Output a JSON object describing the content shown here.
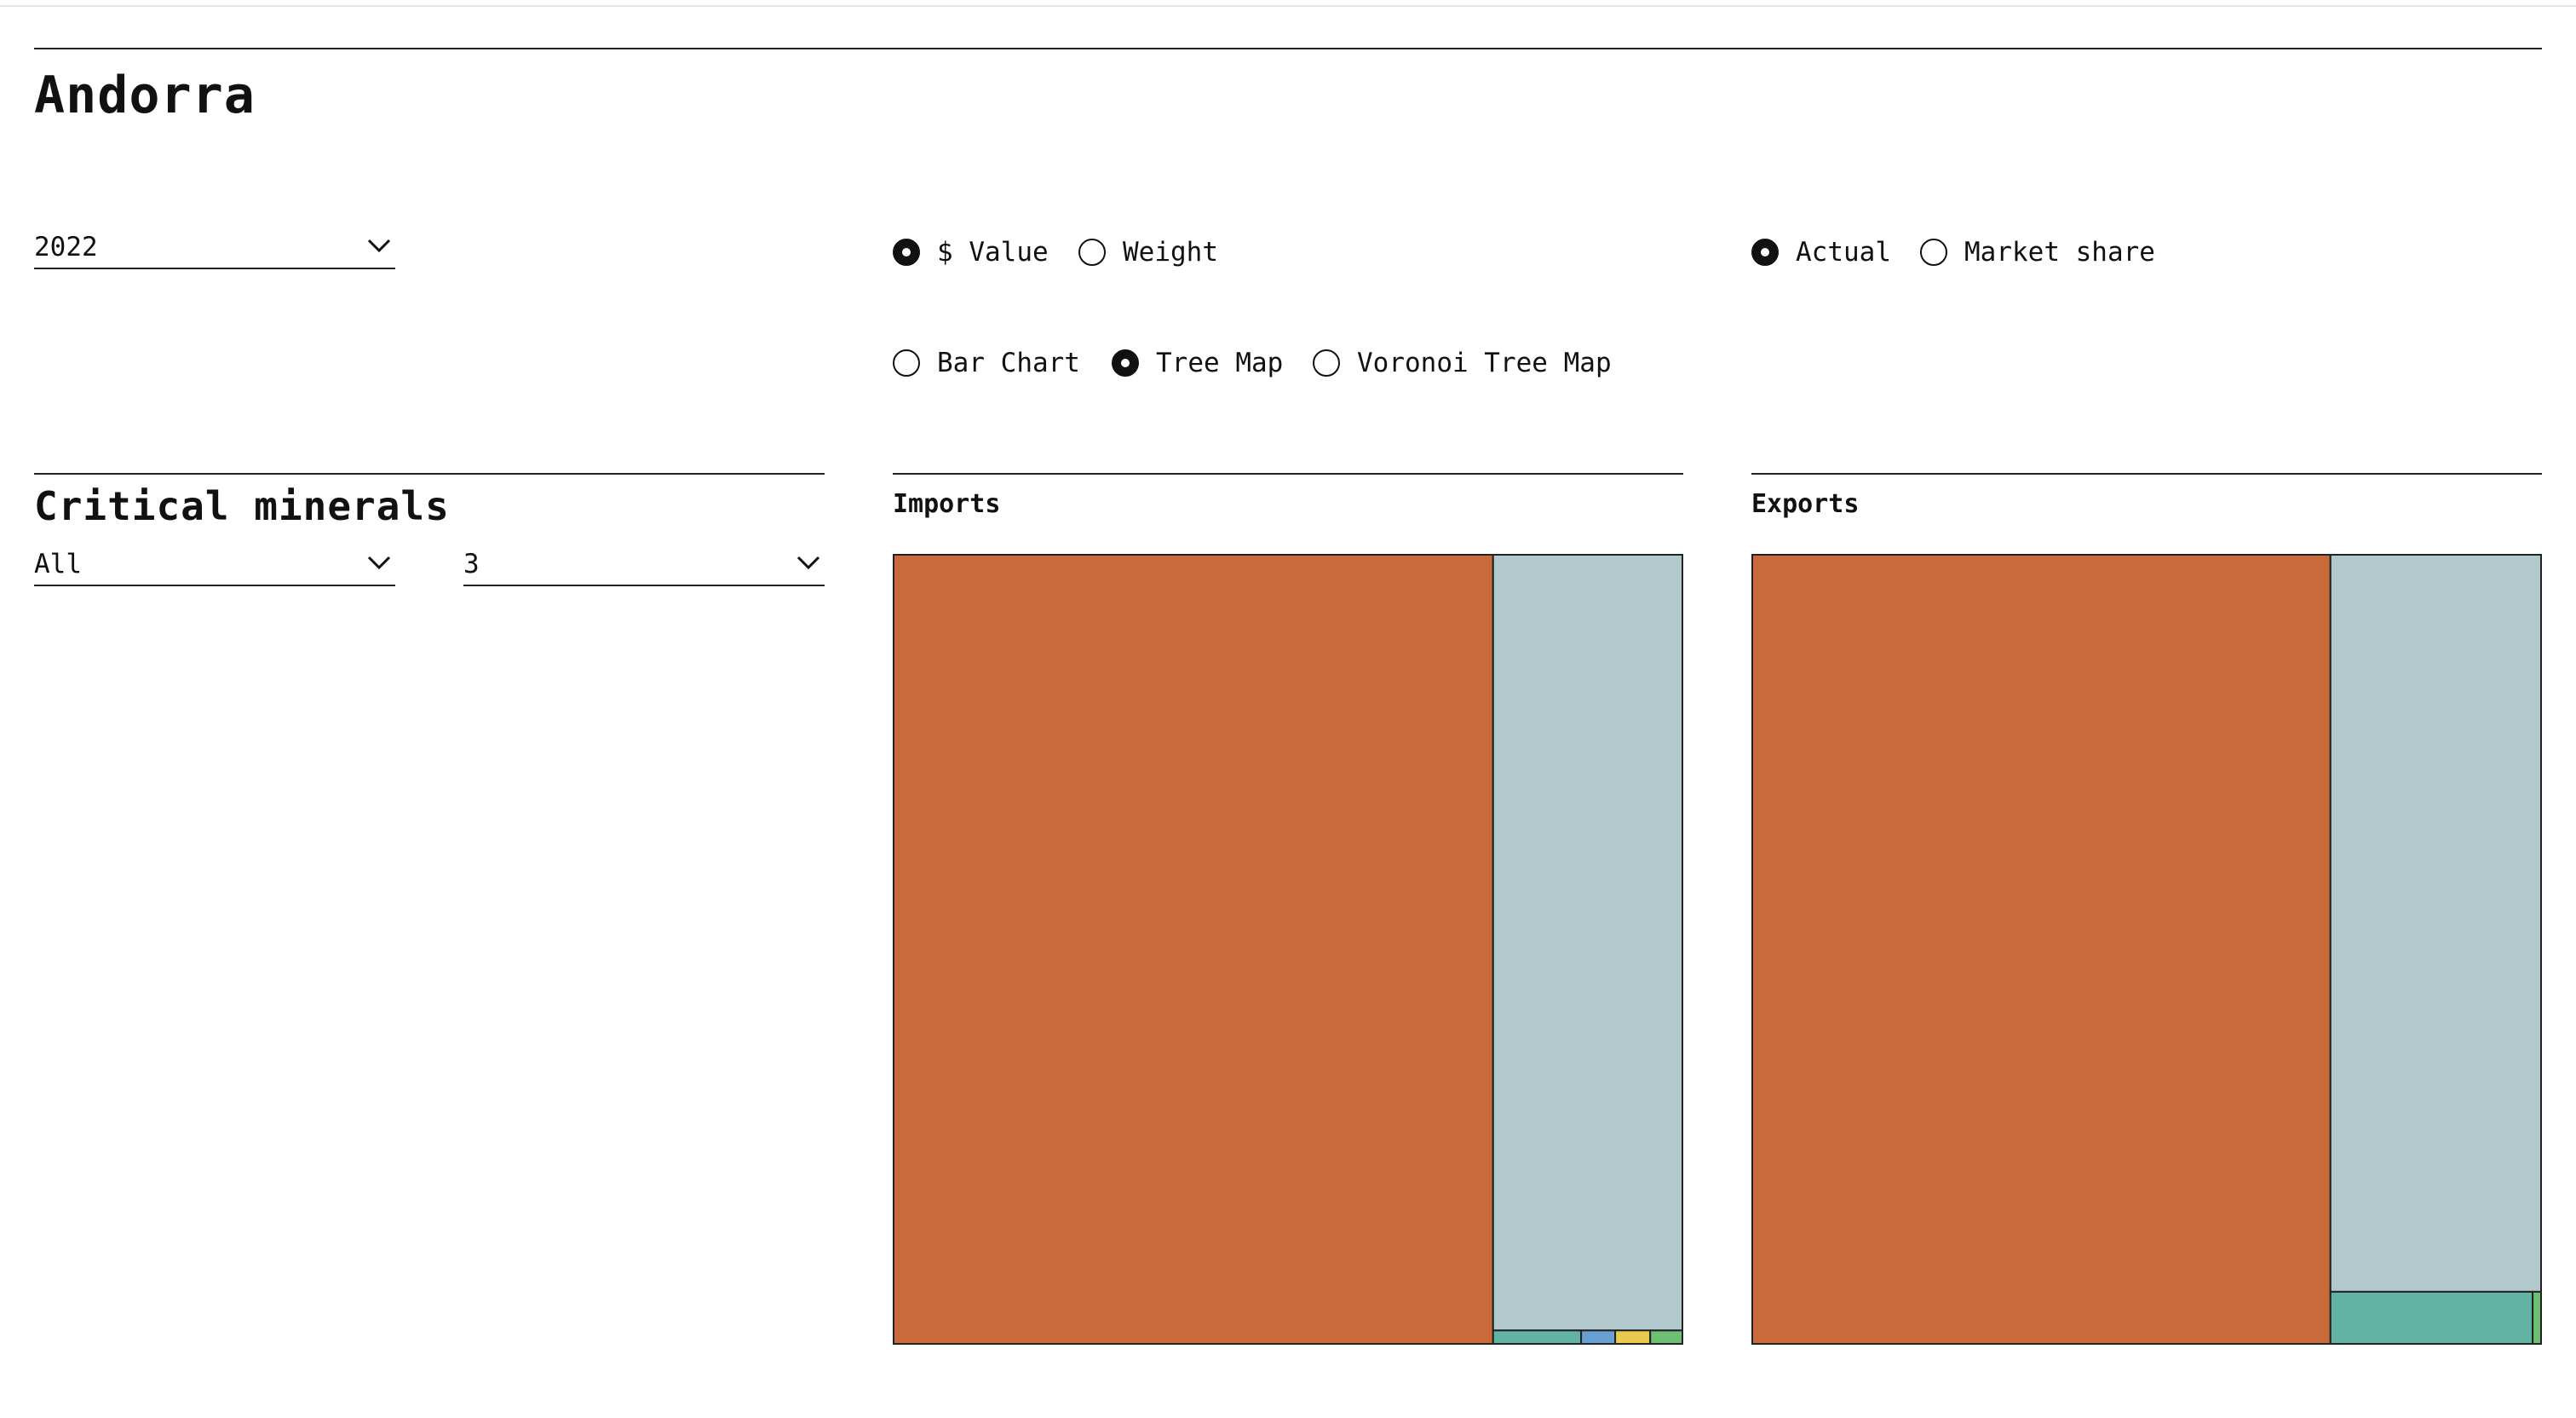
{
  "country": {
    "title": "Andorra"
  },
  "year_select": {
    "value": "2022"
  },
  "measure_options": [
    {
      "label": "$ Value",
      "checked": true
    },
    {
      "label": "Weight",
      "checked": false
    }
  ],
  "share_options": [
    {
      "label": "Actual",
      "checked": true
    },
    {
      "label": "Market share",
      "checked": false
    }
  ],
  "chart_type_options": [
    {
      "label": "Bar Chart",
      "checked": false
    },
    {
      "label": "Tree Map",
      "checked": true
    },
    {
      "label": "Voronoi Tree Map",
      "checked": false
    }
  ],
  "filters": {
    "section_title": "Critical minerals",
    "category_select": {
      "value": "All"
    },
    "level_select": {
      "value": "3"
    }
  },
  "icons": {
    "dropdown": "chevron-down-icon"
  },
  "chart_data": [
    {
      "type": "treemap",
      "title": "Imports",
      "values": [
        0.76,
        0.24
      ],
      "children": [
        {
          "values": [
            0.983,
            0.017
          ],
          "children": [
            {
              "values": [
                0.465,
                0.18,
                0.185,
                0.17
              ]
            }
          ]
        }
      ],
      "colors": [
        "#c96a3a",
        "#b1c9cd",
        "#62b3a4",
        "#6a9fd4",
        "#e8cb4e",
        "#6ebf73"
      ]
    },
    {
      "type": "treemap",
      "title": "Exports",
      "values": [
        0.733,
        0.267
      ],
      "children": [
        {
          "values": [
            0.934,
            0.066
          ],
          "children": [
            {
              "values": [
                0.96,
                0.04
              ]
            }
          ]
        }
      ],
      "colors": [
        "#c96a3a",
        "#b1c9cd",
        "#62b3a4",
        "#6ebf73"
      ]
    }
  ]
}
